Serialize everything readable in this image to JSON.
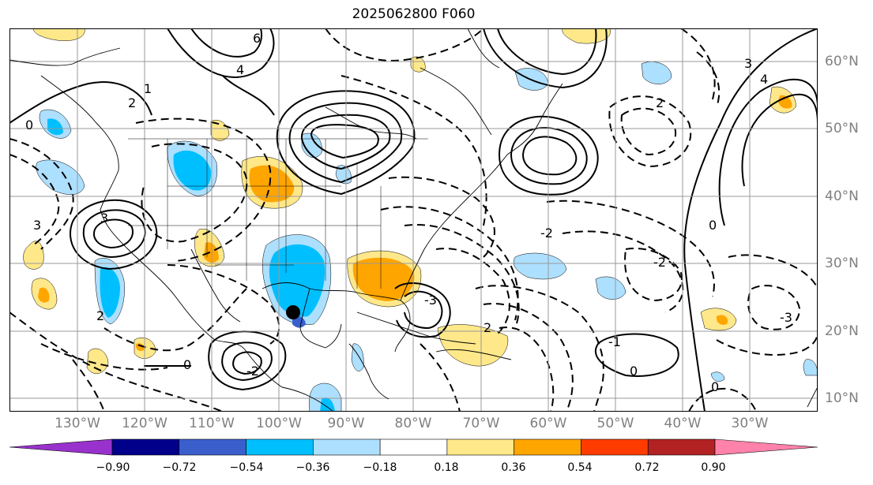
{
  "title": "2025062800 F060",
  "longitude_labels": [
    "130°W",
    "120°W",
    "110°W",
    "100°W",
    "90°W",
    "80°W",
    "70°W",
    "60°W",
    "50°W",
    "40°W",
    "30°W"
  ],
  "latitude_labels": [
    "60°N",
    "50°N",
    "40°N",
    "30°N",
    "20°N",
    "10°N"
  ],
  "contour_labels": [
    "3",
    "2",
    "1",
    "0",
    "-1",
    "-2",
    "-3",
    "4",
    "6"
  ],
  "colorbar": {
    "tick_labels": [
      "−0.90",
      "−0.72",
      "−0.54",
      "−0.36",
      "−0.18",
      "0.18",
      "0.36",
      "0.54",
      "0.72",
      "0.90"
    ],
    "colors": [
      "#9932CC",
      "#00008B",
      "#3A5FCD",
      "#00BFFF",
      "#ADDFFF",
      "#FFFFFF",
      "#FFE88A",
      "#FFA500",
      "#FF3C00",
      "#B22222",
      "#FF82AB"
    ]
  },
  "marker": {
    "label": "storm-center",
    "lon": "-97.6",
    "lat": "23"
  }
}
